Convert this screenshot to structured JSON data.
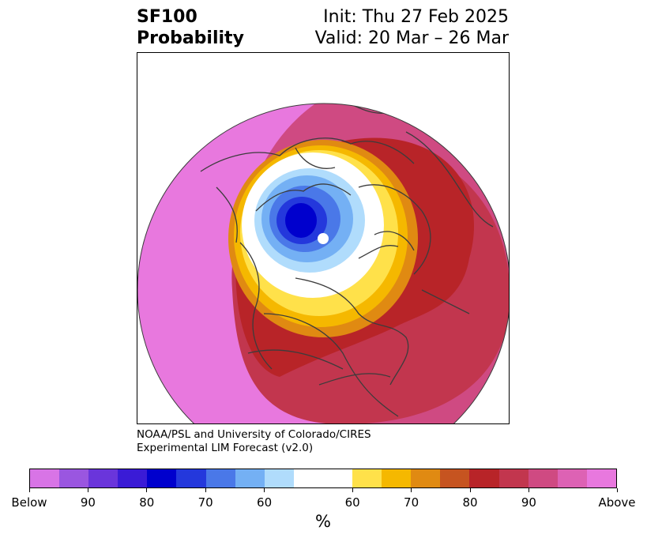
{
  "header": {
    "variable": "SF100",
    "product": "Probability",
    "init": "Init: Thu 27 Feb 2025",
    "valid": "Valid: 20 Mar – 26 Mar"
  },
  "credit": {
    "line1": "NOAA/PSL and University of Colorado/CIRES",
    "line2": "Experimental LIM Forecast (v2.0)"
  },
  "colorbar": {
    "unit": "%",
    "tick_labels": [
      "Below",
      "90",
      "80",
      "70",
      "60",
      "60",
      "70",
      "80",
      "90",
      "Above"
    ],
    "colors": [
      "#d874e6",
      "#9a56e0",
      "#6a35db",
      "#3a1bd6",
      "#0000cd",
      "#2438dc",
      "#4a78e8",
      "#74b0f4",
      "#b0dcfc",
      "#ffffff",
      "#ffe14a",
      "#f5b800",
      "#e08a12",
      "#c65420",
      "#b82428",
      "#c2364e",
      "#cf4a82",
      "#dd62b4",
      "#e878de"
    ]
  },
  "map": {
    "projection": "north-polar-stereographic",
    "pattern": "below-normal center over Arctic / Siberia, above-normal ring across mid-latitudes",
    "colors": {
      "pink": "#e878de",
      "rose": "#cf4a82",
      "crimson": "#c2364e",
      "red": "#b82428",
      "orange": "#e08a12",
      "gold": "#f5b800",
      "yellow": "#ffe14a",
      "white": "#ffffff",
      "lightblue": "#b0dcfc",
      "midblue": "#74b0f4",
      "blue": "#4a78e8",
      "deepblue": "#2438dc",
      "navy": "#0000cd",
      "coast": "#3c3c3c"
    }
  }
}
